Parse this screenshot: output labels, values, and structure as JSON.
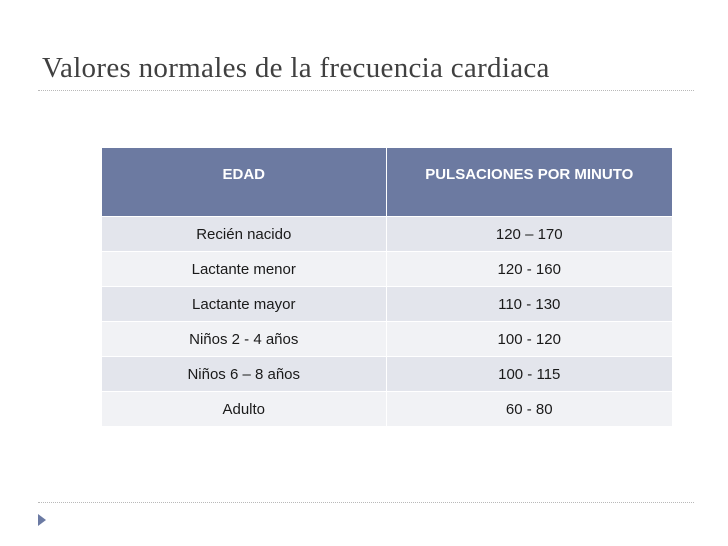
{
  "slide": {
    "title": "Valores normales de la frecuencia cardiaca"
  },
  "table": {
    "headers": [
      "EDAD",
      "PULSACIONES POR MINUTO"
    ],
    "rows": [
      [
        "Recién nacido",
        "120 – 170"
      ],
      [
        "Lactante menor",
        "120 - 160"
      ],
      [
        "Lactante mayor",
        "110 - 130"
      ],
      [
        "Niños 2 - 4 años",
        "100 - 120"
      ],
      [
        "Niños 6 – 8 años",
        "100 - 115"
      ],
      [
        "Adulto",
        "60 - 80"
      ]
    ]
  },
  "colors": {
    "header_bg": "#6c7aa1",
    "row_odd_bg": "#e3e5ec",
    "row_even_bg": "#f1f2f5",
    "title_text": "#404040",
    "bullet": "#6b7aa3"
  },
  "icons": {
    "bullet": "triangle-bullet-icon"
  }
}
